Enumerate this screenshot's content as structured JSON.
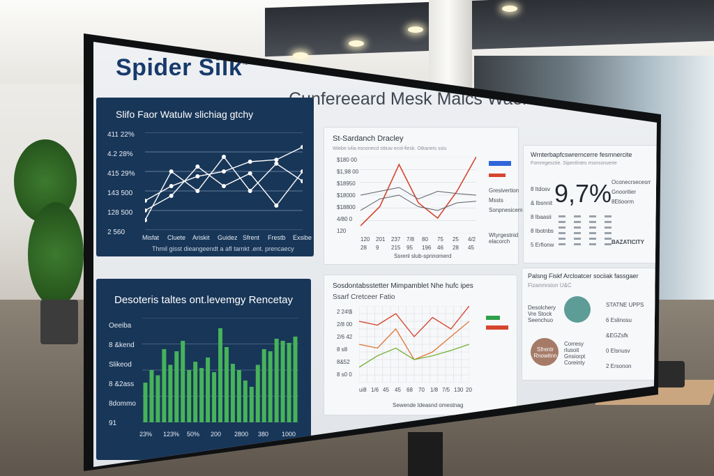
{
  "brand": {
    "name": "Spider Silk",
    "mark": "™"
  },
  "headline": "Cunfereeard Mesk Malcs Waele",
  "panel_top_left": {
    "title": "Slifo Faor Watulw slichiag gtchy",
    "y_ticks": [
      "411 22%",
      "4.2 28%",
      "415 29%",
      "143 500",
      "128 500",
      "2 560"
    ],
    "x_ticks": [
      "Misfat",
      "Cluete",
      "Ariskit",
      "Guidez",
      "Sfrent",
      "Frestb",
      "Exsibe"
    ],
    "footer": "Thmil gisst dieangeendt a afl tarnkt .ent. prencaecy"
  },
  "panel_bottom_left": {
    "title": "Desoteris taltes ont.levemgy Rencetay",
    "y_ticks": [
      "Oeeiba",
      "8 &kend",
      "Slikeod",
      "8 &2ass",
      "8dommo",
      "91"
    ],
    "x_ticks": [
      "23%",
      "123%",
      "50%",
      "200",
      "2800",
      "380",
      "1000"
    ]
  },
  "panel_mid_top": {
    "title": "St-Sardanch Dracley",
    "subtitle": "Wiebe ivlia esnonecd sttiuw ecol-fiesk. Otkaneis ssiu",
    "y_ticks": [
      "$180 00",
      "$1,98 00",
      "$18950",
      "$18000",
      "$18800",
      "4/80 0",
      "120"
    ],
    "x_ticks": [
      "120",
      "201",
      "237",
      "7/8",
      "80",
      "75",
      "25",
      "4/2"
    ],
    "x_ticks2": [
      "28",
      "9",
      "215",
      "95",
      "196",
      "46",
      "28",
      "45"
    ],
    "footer": "Ssrenl slub-spnnomerd",
    "legend": [
      "Gresivertion",
      "Mssts",
      "Sonpnesicem"
    ],
    "legend_foot": "Wtyrgestnid elacorch"
  },
  "panel_right_top": {
    "title": "Wrnterbapfcswrerncerre fesmnercite",
    "subtitle": "Fomregesctie. Sipectlntes rrsorssnuerte",
    "big_value": "9,7%",
    "y_ticks": [
      "8 Itdosv",
      "& Ibsnnit",
      "8 Ibaasii",
      "8 Ibotnbs",
      "5 Erfionw"
    ],
    "side": [
      "Oconecrsecesrr",
      "Gnooritier",
      "8Etioorm"
    ],
    "side2": "BAZATICITY"
  },
  "panel_mid_bottom": {
    "title": "Sosdontabsstetter Mimpamblet Nhe hufc ipes",
    "subtitle": "Ssarf Cretceer Fatio",
    "y_ticks": [
      "2 24\\$",
      "2/8 00",
      "2/6 42",
      "8 s8",
      "8&52",
      "8 s0 0"
    ],
    "x_ticks": [
      "ui8",
      "1/6",
      "45",
      "45",
      "68",
      "70",
      "1/8",
      "7/5",
      "130",
      "20"
    ],
    "footer": "Sewende Ideasnd omestnag"
  },
  "panel_right_bottom": {
    "title": "Palsng Fiskf Arcloatcer sociiak fassgaer",
    "subtitle": "Fizanmrsion U&C",
    "bubbles": [
      {
        "label": "Desolchery Vre Stock Seenchuo",
        "color": "#5e9c97"
      },
      {
        "label": "Sfrentr Rnowitnn",
        "color": "#a57b68"
      }
    ],
    "mid_text": "Corresy rlusoit Gnsiorpt Coreinty",
    "right_col": [
      "STATNE UPPS",
      "6 Eslinosu",
      "&EGZsfk",
      "0 Elsnusv",
      "2 Ersonon"
    ]
  },
  "colors": {
    "navy": "#183658",
    "green": "#46b35a",
    "red": "#d6452e",
    "orange": "#e07a3a",
    "blue_legend": "#2f66d9",
    "teal": "#5e9c97",
    "clay": "#a57b68"
  },
  "chart_data": [
    {
      "type": "line",
      "title": "Slifo Faor Watulw slichiag gtchy",
      "categories": [
        "Misfat",
        "Cluete",
        "Ariskit",
        "Guidez",
        "Sfrent",
        "Frestb",
        "Exsibe"
      ],
      "series": [
        {
          "values": [
            0.3,
            0.45,
            0.55,
            0.6,
            0.7,
            0.72,
            0.85
          ]
        },
        {
          "values": [
            0.1,
            0.6,
            0.4,
            0.75,
            0.4,
            0.68,
            0.5
          ]
        },
        {
          "values": [
            0.2,
            0.35,
            0.65,
            0.45,
            0.58,
            0.25,
            0.6
          ]
        }
      ],
      "ylim": [
        0,
        1
      ]
    },
    {
      "type": "bar",
      "title": "Desoteris taltes ont.levemgy Rencetay",
      "values": [
        0.38,
        0.5,
        0.45,
        0.7,
        0.55,
        0.68,
        0.78,
        0.5,
        0.58,
        0.52,
        0.62,
        0.48,
        0.9,
        0.72,
        0.56,
        0.5,
        0.4,
        0.34,
        0.55,
        0.7,
        0.68,
        0.8,
        0.78,
        0.76,
        0.82
      ],
      "ylim": [
        0,
        1
      ]
    },
    {
      "type": "line",
      "title": "St-Sardanch Dracley",
      "series": [
        {
          "values": [
            0.1,
            0.35,
            0.9,
            0.4,
            0.2,
            0.55,
            1.0
          ]
        },
        {
          "values": [
            0.5,
            0.55,
            0.6,
            0.45,
            0.55,
            0.52,
            0.5
          ]
        },
        {
          "values": [
            0.3,
            0.45,
            0.5,
            0.35,
            0.3,
            0.4,
            0.42
          ]
        }
      ],
      "ylim": [
        0,
        1
      ]
    },
    {
      "type": "line",
      "title": "Sosdontabsstetter Mimpamblet Nhe hufc ipes",
      "series": [
        {
          "values": [
            0.8,
            0.75,
            0.9,
            0.6,
            0.85,
            0.7,
            1.0
          ]
        },
        {
          "values": [
            0.5,
            0.45,
            0.7,
            0.3,
            0.4,
            0.6,
            0.8
          ]
        },
        {
          "values": [
            0.2,
            0.35,
            0.45,
            0.3,
            0.35,
            0.42,
            0.5
          ]
        }
      ],
      "ylim": [
        0,
        1
      ]
    }
  ]
}
